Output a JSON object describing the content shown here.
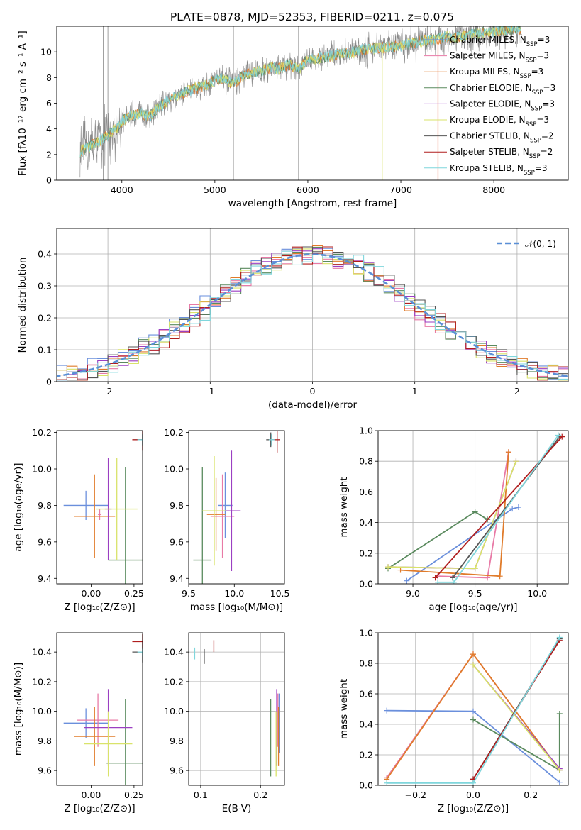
{
  "title": "PLATE=0878, MJD=52353, FIBERID=0211, z=0.075",
  "colors": {
    "Chabrier MILES": "#6a8fdc",
    "Salpeter MILES": "#e87aa6",
    "Kroupa MILES": "#e07b2a",
    "Chabrier ELODIE": "#5a8a5e",
    "Salpeter ELODIE": "#9b3fc2",
    "Kroupa ELODIE": "#d9e36a",
    "Chabrier STELIB": "#555555",
    "Salpeter STELIB": "#b01e1e",
    "Kroupa STELIB": "#7fd6dc",
    "data": "#888888",
    "gaussian": "#5a8fd6"
  },
  "chart_data": [
    {
      "id": "spectrum",
      "type": "line",
      "xlabel": "wavelength [Angstrom, rest frame]",
      "ylabel": "Flux [fλ10⁻¹⁷ erg cm⁻² s⁻¹ A⁻¹]",
      "xlim": [
        3300,
        8800
      ],
      "ylim": [
        0,
        12
      ],
      "xticks": [
        4000,
        5000,
        6000,
        7000,
        8000
      ],
      "yticks": [
        0,
        2,
        4,
        6,
        8,
        10
      ],
      "grid": false,
      "legend_position": "lower-right",
      "legend": [
        "Chabrier MILES, N_SSP=3",
        "Salpeter MILES, N_SSP=3",
        "Kroupa MILES, N_SSP=3",
        "Chabrier ELODIE, N_SSP=3",
        "Salpeter ELODIE, N_SSP=3",
        "Kroupa ELODIE, N_SSP=3",
        "Chabrier STELIB, N_SSP=2",
        "Salpeter STELIB, N_SSP=2",
        "Kroupa STELIB, N_SSP=3"
      ],
      "continuum": [
        [
          3550,
          2.2
        ],
        [
          3650,
          2.6
        ],
        [
          3750,
          3.0
        ],
        [
          3850,
          3.5
        ],
        [
          3950,
          4.1
        ],
        [
          4000,
          4.6
        ],
        [
          4100,
          5.1
        ],
        [
          4200,
          5.2
        ],
        [
          4300,
          5.0
        ],
        [
          4400,
          5.7
        ],
        [
          4500,
          6.2
        ],
        [
          4600,
          6.6
        ],
        [
          4700,
          6.9
        ],
        [
          4800,
          7.2
        ],
        [
          4900,
          7.4
        ],
        [
          5000,
          7.8
        ],
        [
          5100,
          7.9
        ],
        [
          5200,
          7.5
        ],
        [
          5300,
          8.1
        ],
        [
          5400,
          8.4
        ],
        [
          5500,
          8.5
        ],
        [
          5600,
          8.8
        ],
        [
          5700,
          8.7
        ],
        [
          5800,
          9.0
        ],
        [
          5900,
          8.6
        ],
        [
          6000,
          9.4
        ],
        [
          6100,
          9.5
        ],
        [
          6200,
          9.6
        ],
        [
          6300,
          9.8
        ],
        [
          6400,
          9.9
        ],
        [
          6500,
          10.0
        ],
        [
          6600,
          10.2
        ],
        [
          6700,
          10.3
        ],
        [
          6800,
          10.3
        ],
        [
          6900,
          10.4
        ],
        [
          7000,
          10.5
        ],
        [
          7100,
          10.6
        ],
        [
          7200,
          10.8
        ],
        [
          7300,
          10.9
        ],
        [
          7400,
          11.0
        ],
        [
          7500,
          11.2
        ],
        [
          7600,
          11.1
        ],
        [
          7700,
          11.3
        ],
        [
          7800,
          11.4
        ],
        [
          7900,
          11.5
        ],
        [
          8000,
          11.6
        ],
        [
          8100,
          11.7
        ],
        [
          8200,
          11.8
        ],
        [
          8300,
          11.8
        ]
      ]
    },
    {
      "id": "residuals",
      "type": "histogram",
      "xlabel": "(data-model)/error",
      "ylabel": "Normed distribution",
      "xlim": [
        -2.5,
        2.5
      ],
      "ylim": [
        0,
        0.48
      ],
      "xticks": [
        -2,
        -1,
        0,
        1,
        2
      ],
      "yticks": [
        0.0,
        0.1,
        0.2,
        0.3,
        0.4
      ],
      "grid": true,
      "legend_position": "top-right",
      "legend": [
        "𝒩(0, 1)"
      ]
    },
    {
      "id": "age_vs_Z",
      "type": "scatter",
      "xlabel": "Z [log₁₀(Z/Z⊙)]",
      "ylabel": "age  [log₁₀(age/yr)]",
      "xlim": [
        -0.2,
        0.3
      ],
      "ylim": [
        9.37,
        10.21
      ],
      "xticks": [
        0.0,
        0.25
      ],
      "xticklabels": [
        "0.00",
        "0.25"
      ],
      "yticks": [
        9.4,
        9.6,
        9.8,
        10.0,
        10.2
      ],
      "grid": false,
      "points": [
        {
          "model": "Chabrier MILES",
          "x": -0.03,
          "xerr": 0.13,
          "y": 9.8,
          "yerr": 0.08
        },
        {
          "model": "Salpeter MILES",
          "x": 0.05,
          "xerr": 0.01,
          "y": 9.75,
          "yerr": 0.03
        },
        {
          "model": "Kroupa MILES",
          "x": 0.02,
          "xerr": 0.12,
          "y": 9.74,
          "yerr": 0.23
        },
        {
          "model": "Chabrier ELODIE",
          "x": 0.2,
          "xerr": 0.1,
          "y": 9.5,
          "yerr": 0.51
        },
        {
          "model": "Salpeter ELODIE",
          "x": 0.1,
          "xerr": 0.02,
          "y": 9.78,
          "yerr": 0.28
        },
        {
          "model": "Kroupa ELODIE",
          "x": 0.15,
          "xerr": 0.12,
          "y": 9.78,
          "yerr": 0.28
        },
        {
          "model": "Chabrier STELIB",
          "x": 0.3,
          "xerr": 0.06,
          "y": 10.16,
          "yerr": 0.03
        },
        {
          "model": "Salpeter STELIB",
          "x": 0.3,
          "xerr": 0.06,
          "y": 10.16,
          "yerr": 0.06
        },
        {
          "model": "Kroupa STELIB",
          "x": 0.3,
          "xerr": 0.03,
          "y": 10.16,
          "yerr": 0.03
        }
      ]
    },
    {
      "id": "age_vs_mass",
      "type": "scatter",
      "xlabel": "mass [log₁₀(M/M⊙)]",
      "ylabel": "",
      "xlim": [
        9.5,
        10.55
      ],
      "ylim": [
        9.37,
        10.21
      ],
      "xticks": [
        9.5,
        10.0,
        10.5
      ],
      "xticklabels": [
        "9.5",
        "10.0",
        "10.5"
      ],
      "yticks": [
        9.4,
        9.6,
        9.8,
        10.0,
        10.2
      ],
      "grid": false,
      "points": [
        {
          "model": "Chabrier MILES",
          "x": 9.9,
          "xerr": 0.08,
          "y": 9.8,
          "yerr": 0.18
        },
        {
          "model": "Salpeter MILES",
          "x": 9.87,
          "xerr": 0.13,
          "y": 9.74,
          "yerr": 0.23
        },
        {
          "model": "Kroupa MILES",
          "x": 9.8,
          "xerr": 0.1,
          "y": 9.75,
          "yerr": 0.2
        },
        {
          "model": "Chabrier ELODIE",
          "x": 9.65,
          "xerr": 0.1,
          "y": 9.5,
          "yerr": 0.51
        },
        {
          "model": "Salpeter ELODIE",
          "x": 9.97,
          "xerr": 0.1,
          "y": 9.77,
          "yerr": 0.33
        },
        {
          "model": "Kroupa ELODIE",
          "x": 9.78,
          "xerr": 0.13,
          "y": 9.77,
          "yerr": 0.3
        },
        {
          "model": "Chabrier STELIB",
          "x": 10.4,
          "xerr": 0.05,
          "y": 10.16,
          "yerr": 0.04
        },
        {
          "model": "Salpeter STELIB",
          "x": 10.47,
          "xerr": 0.03,
          "y": 10.16,
          "yerr": 0.07
        },
        {
          "model": "Kroupa STELIB",
          "x": 10.41,
          "xerr": 0.03,
          "y": 10.16,
          "yerr": 0.03
        }
      ]
    },
    {
      "id": "weight_vs_age",
      "type": "line",
      "xlabel": "age  [log₁₀(age/yr)]",
      "ylabel": "mass weight",
      "xlim": [
        8.72,
        10.25
      ],
      "ylim": [
        0,
        1.0
      ],
      "xticks": [
        9.0,
        9.5,
        10.0
      ],
      "xticklabels": [
        "9.0",
        "9.5",
        "10.0"
      ],
      "yticks": [
        0.0,
        0.2,
        0.4,
        0.6,
        0.8,
        1.0
      ],
      "grid": true,
      "series": [
        {
          "model": "Chabrier MILES",
          "x": [
            8.95,
            9.8,
            9.85
          ],
          "y": [
            0.02,
            0.49,
            0.5
          ]
        },
        {
          "model": "Salpeter MILES",
          "x": [
            9.2,
            9.6,
            9.77
          ],
          "y": [
            0.05,
            0.04,
            0.86
          ]
        },
        {
          "model": "Kroupa MILES",
          "x": [
            8.9,
            9.7,
            9.77
          ],
          "y": [
            0.09,
            0.05,
            0.86
          ]
        },
        {
          "model": "Chabrier ELODIE",
          "x": [
            8.8,
            9.5,
            9.6
          ],
          "y": [
            0.1,
            0.47,
            0.42
          ]
        },
        {
          "model": "Salpeter ELODIE",
          "x": [
            8.8,
            9.5,
            9.83
          ],
          "y": [
            0.11,
            0.1,
            0.8
          ]
        },
        {
          "model": "Kroupa ELODIE",
          "x": [
            8.8,
            9.5,
            9.83
          ],
          "y": [
            0.11,
            0.1,
            0.8
          ]
        },
        {
          "model": "Chabrier STELIB",
          "x": [
            9.32,
            10.18
          ],
          "y": [
            0.04,
            0.96
          ]
        },
        {
          "model": "Salpeter STELIB",
          "x": [
            9.18,
            10.2
          ],
          "y": [
            0.04,
            0.96
          ]
        },
        {
          "model": "Kroupa STELIB",
          "x": [
            9.2,
            9.33,
            10.17
          ],
          "y": [
            0.01,
            0.01,
            0.97
          ]
        }
      ]
    },
    {
      "id": "mass_vs_Z",
      "type": "scatter",
      "xlabel": "Z [log₁₀(Z/Z⊙)]",
      "ylabel": "mass [log₁₀(M/M⊙)]",
      "xlim": [
        -0.2,
        0.3
      ],
      "ylim": [
        9.5,
        10.53
      ],
      "xticks": [
        0.0,
        0.25
      ],
      "xticklabels": [
        "0.00",
        "0.25"
      ],
      "yticks": [
        9.6,
        9.8,
        10.0,
        10.2,
        10.4
      ],
      "grid": false,
      "points": [
        {
          "model": "Chabrier MILES",
          "x": -0.03,
          "xerr": 0.13,
          "y": 9.92,
          "yerr": 0.1
        },
        {
          "model": "Salpeter MILES",
          "x": 0.04,
          "xerr": 0.12,
          "y": 9.94,
          "yerr": 0.18
        },
        {
          "model": "Kroupa MILES",
          "x": 0.02,
          "xerr": 0.12,
          "y": 9.83,
          "yerr": 0.2
        },
        {
          "model": "Chabrier ELODIE",
          "x": 0.2,
          "xerr": 0.11,
          "y": 9.65,
          "yerr": 0.43
        },
        {
          "model": "Salpeter ELODIE",
          "x": 0.1,
          "xerr": 0.14,
          "y": 9.89,
          "yerr": 0.26
        },
        {
          "model": "Kroupa ELODIE",
          "x": 0.1,
          "xerr": 0.14,
          "y": 9.78,
          "yerr": 0.22
        },
        {
          "model": "Chabrier STELIB",
          "x": 0.3,
          "xerr": 0.06,
          "y": 10.4,
          "yerr": 0.07
        },
        {
          "model": "Salpeter STELIB",
          "x": 0.3,
          "xerr": 0.06,
          "y": 10.47,
          "yerr": 0.05
        },
        {
          "model": "Kroupa STELIB",
          "x": 0.3,
          "xerr": 0.03,
          "y": 10.4,
          "yerr": 0.03
        }
      ]
    },
    {
      "id": "mass_vs_EBV",
      "type": "scatter",
      "xlabel": "E(B-V)",
      "ylabel": "",
      "xlim": [
        0.08,
        0.24
      ],
      "ylim": [
        9.5,
        10.53
      ],
      "xticks": [
        0.1,
        0.2
      ],
      "xticklabels": [
        "0.1",
        "0.2"
      ],
      "yticks": [
        9.6,
        9.8,
        10.0,
        10.2,
        10.4
      ],
      "grid": true,
      "points": [
        {
          "model": "Chabrier MILES",
          "x": 0.231,
          "y": 9.92,
          "yerr": 0.2
        },
        {
          "model": "Salpeter MILES",
          "x": 0.229,
          "y": 9.94,
          "yerr": 0.18
        },
        {
          "model": "Kroupa MILES",
          "x": 0.23,
          "y": 9.83,
          "yerr": 0.2
        },
        {
          "model": "Chabrier ELODIE",
          "x": 0.217,
          "y": 9.82,
          "yerr": 0.26
        },
        {
          "model": "Salpeter ELODIE",
          "x": 0.227,
          "y": 9.89,
          "yerr": 0.26
        },
        {
          "model": "Kroupa ELODIE",
          "x": 0.226,
          "y": 9.78,
          "yerr": 0.22
        },
        {
          "model": "Chabrier STELIB",
          "x": 0.106,
          "y": 10.37,
          "yerr": 0.05
        },
        {
          "model": "Salpeter STELIB",
          "x": 0.122,
          "y": 10.44,
          "yerr": 0.04
        },
        {
          "model": "Kroupa STELIB",
          "x": 0.09,
          "y": 10.39,
          "yerr": 0.04
        }
      ]
    },
    {
      "id": "weight_vs_Z",
      "type": "line",
      "xlabel": "Z [log₁₀(Z/Z⊙)]",
      "ylabel": "mass weight",
      "xlim": [
        -0.33,
        0.33
      ],
      "ylim": [
        0,
        1.0
      ],
      "xticks": [
        -0.2,
        0.0,
        0.2
      ],
      "xticklabels": [
        "−0.2",
        "0.0",
        "0.2"
      ],
      "yticks": [
        0.0,
        0.2,
        0.4,
        0.6,
        0.8,
        1.0
      ],
      "grid": true,
      "series": [
        {
          "model": "Chabrier MILES",
          "x": [
            -0.3,
            0.0,
            0.3
          ],
          "y": [
            0.49,
            0.485,
            0.02
          ]
        },
        {
          "model": "Salpeter MILES",
          "x": [
            -0.3,
            0.0,
            0.3
          ],
          "y": [
            0.05,
            0.86,
            0.1
          ]
        },
        {
          "model": "Kroupa MILES",
          "x": [
            -0.3,
            0.0,
            0.3
          ],
          "y": [
            0.04,
            0.86,
            0.1
          ]
        },
        {
          "model": "Chabrier ELODIE",
          "x": [
            0.0,
            0.3,
            0.3
          ],
          "y": [
            0.43,
            0.1,
            0.47
          ]
        },
        {
          "model": "Salpeter ELODIE",
          "x": [
            0.0,
            0.3
          ],
          "y": [
            0.79,
            0.11
          ]
        },
        {
          "model": "Kroupa ELODIE",
          "x": [
            0.0,
            0.3
          ],
          "y": [
            0.79,
            0.1
          ]
        },
        {
          "model": "Chabrier STELIB",
          "x": [
            0.0,
            0.3
          ],
          "y": [
            0.04,
            0.96
          ]
        },
        {
          "model": "Salpeter STELIB",
          "x": [
            0.0,
            0.3
          ],
          "y": [
            0.04,
            0.95
          ]
        },
        {
          "model": "Kroupa STELIB",
          "x": [
            -0.3,
            0.0,
            0.3
          ],
          "y": [
            0.015,
            0.015,
            0.97
          ]
        }
      ]
    }
  ]
}
